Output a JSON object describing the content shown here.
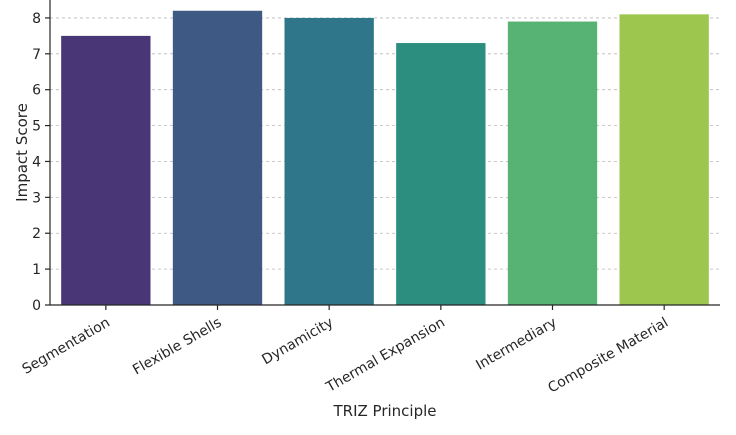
{
  "chart_data": {
    "type": "bar",
    "categories": [
      "Segmentation",
      "Flexible Shells",
      "Dynamicity",
      "Thermal Expansion",
      "Intermediary",
      "Composite Material"
    ],
    "values": [
      7.5,
      8.2,
      8.0,
      7.3,
      7.9,
      8.1
    ],
    "colors": [
      "#483677",
      "#3e5a84",
      "#30768b",
      "#2b8e7f",
      "#57b374",
      "#9dc64e"
    ],
    "title": "",
    "xlabel": "TRIZ Principle",
    "ylabel": "Impact Score",
    "ylim": [
      0,
      8.5
    ],
    "yticks": [
      0,
      1,
      2,
      3,
      4,
      5,
      6,
      7,
      8
    ],
    "grid": true,
    "grid_style": "dashed horizontal"
  }
}
